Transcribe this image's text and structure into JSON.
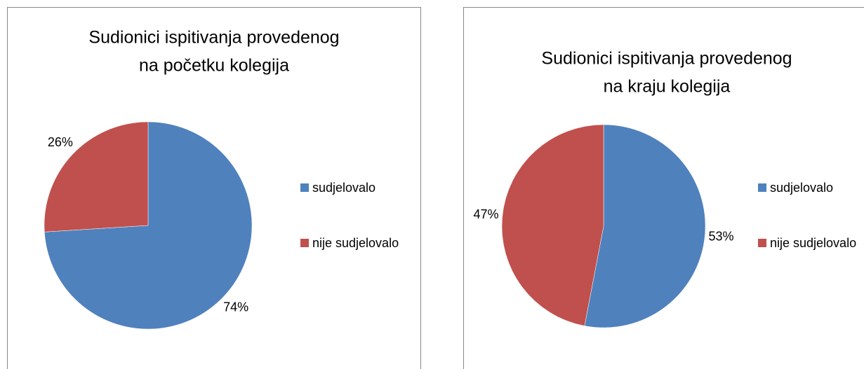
{
  "chart_data": [
    {
      "type": "pie",
      "title": [
        "Sudionici ispitivanja provedenog",
        "na početku kolegija"
      ],
      "categories": [
        "sudjelovalo",
        "nije sudjelovalo"
      ],
      "values": [
        74,
        26
      ],
      "value_labels": [
        "74%",
        "26%"
      ],
      "colors": [
        "#4f81bd",
        "#c0504d"
      ]
    },
    {
      "type": "pie",
      "title": [
        "Sudionici ispitivanja provedenog",
        "na kraju kolegija"
      ],
      "categories": [
        "sudjelovalo",
        "nije sudjelovalo"
      ],
      "values": [
        53,
        47
      ],
      "value_labels": [
        "53%",
        "47%"
      ],
      "colors": [
        "#4f81bd",
        "#c0504d"
      ]
    }
  ]
}
